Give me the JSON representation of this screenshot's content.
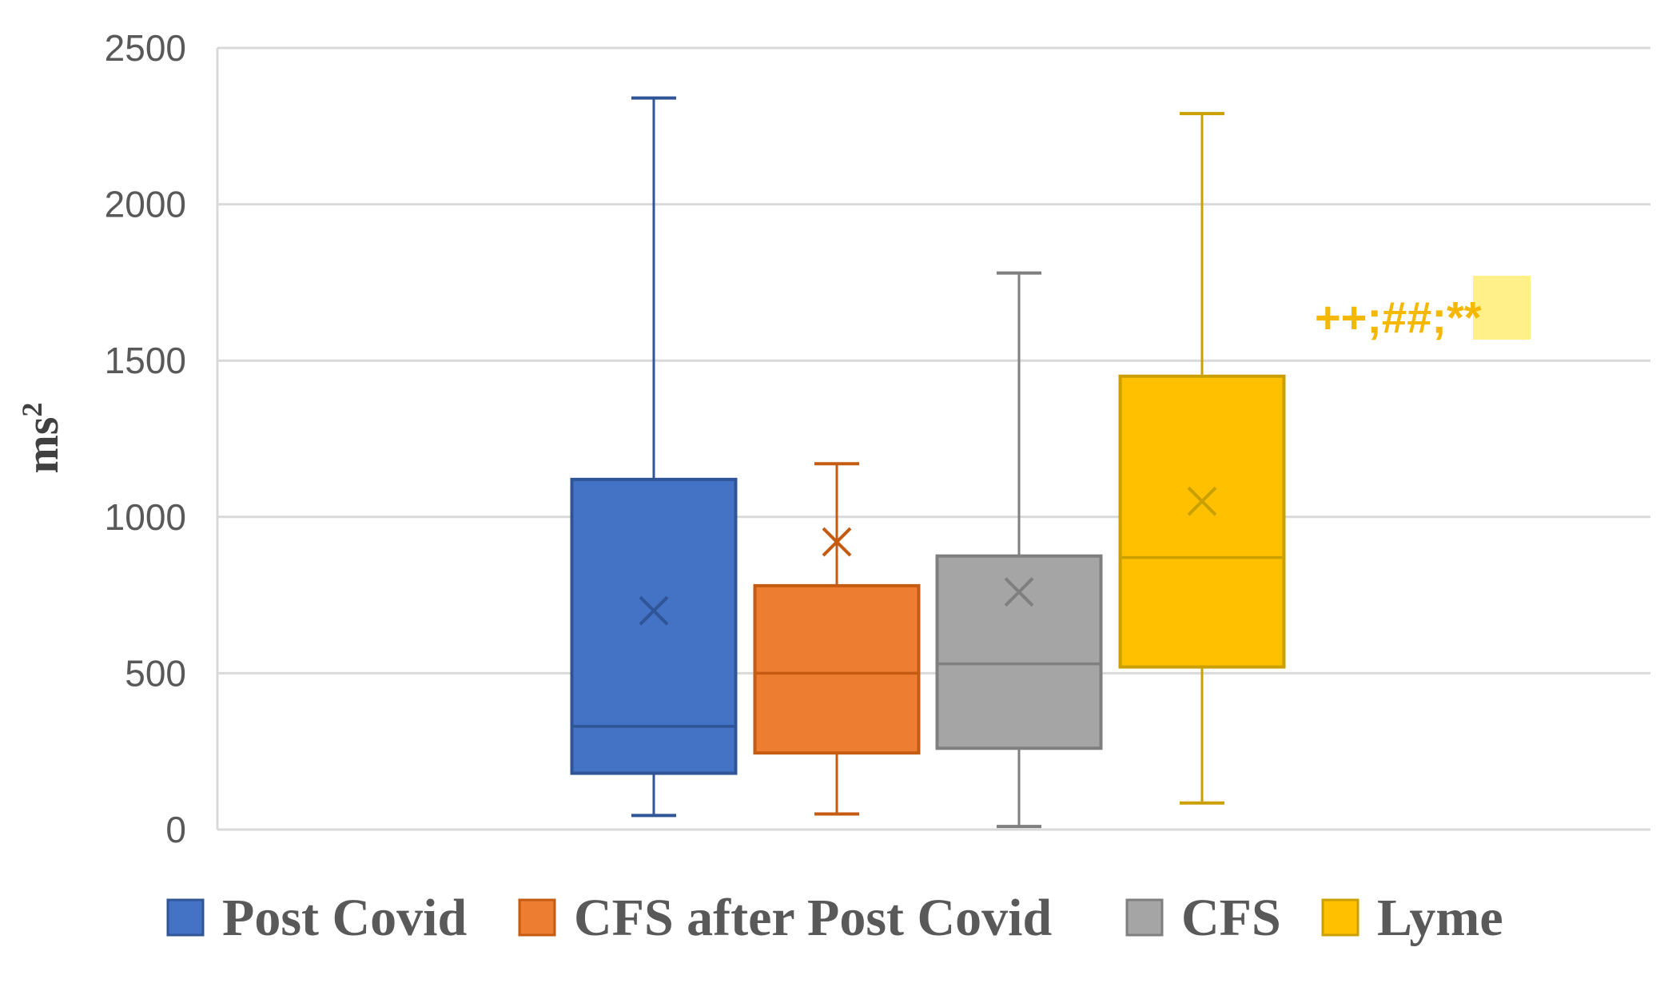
{
  "chart_data": {
    "type": "box",
    "title": "",
    "xlabel": "",
    "ylabel": "ms",
    "ylabel_superscript": "2",
    "ylim": [
      0,
      2500
    ],
    "yticks": [
      0,
      500,
      1000,
      1500,
      2000,
      2500
    ],
    "grid": true,
    "legend_position": "bottom",
    "series": [
      {
        "name": "Post Covid",
        "color": "#4472C4",
        "stroke": "#2F5597",
        "min": 45,
        "q1": 180,
        "median": 330,
        "q3": 1120,
        "max": 2340,
        "mean": 700
      },
      {
        "name": "CFS after Post Covid",
        "color": "#ED7D31",
        "stroke": "#C55A11",
        "min": 50,
        "q1": 245,
        "median": 500,
        "q3": 780,
        "max": 1170,
        "mean": 920
      },
      {
        "name": "CFS",
        "color": "#A5A5A5",
        "stroke": "#7F7F7F",
        "min": 10,
        "q1": 260,
        "median": 530,
        "q3": 875,
        "max": 1780,
        "mean": 760
      },
      {
        "name": "Lyme",
        "color": "#FFC000",
        "stroke": "#C9A000",
        "min": 85,
        "q1": 520,
        "median": 870,
        "q3": 1450,
        "max": 2290,
        "mean": 1050
      }
    ],
    "annotation": {
      "text_plain": "++;##;",
      "text_highlighted": "**",
      "attached_to": "Lyme",
      "y_value": 1640,
      "color": "#F5B800",
      "highlight_color": "#FFF08A"
    }
  }
}
